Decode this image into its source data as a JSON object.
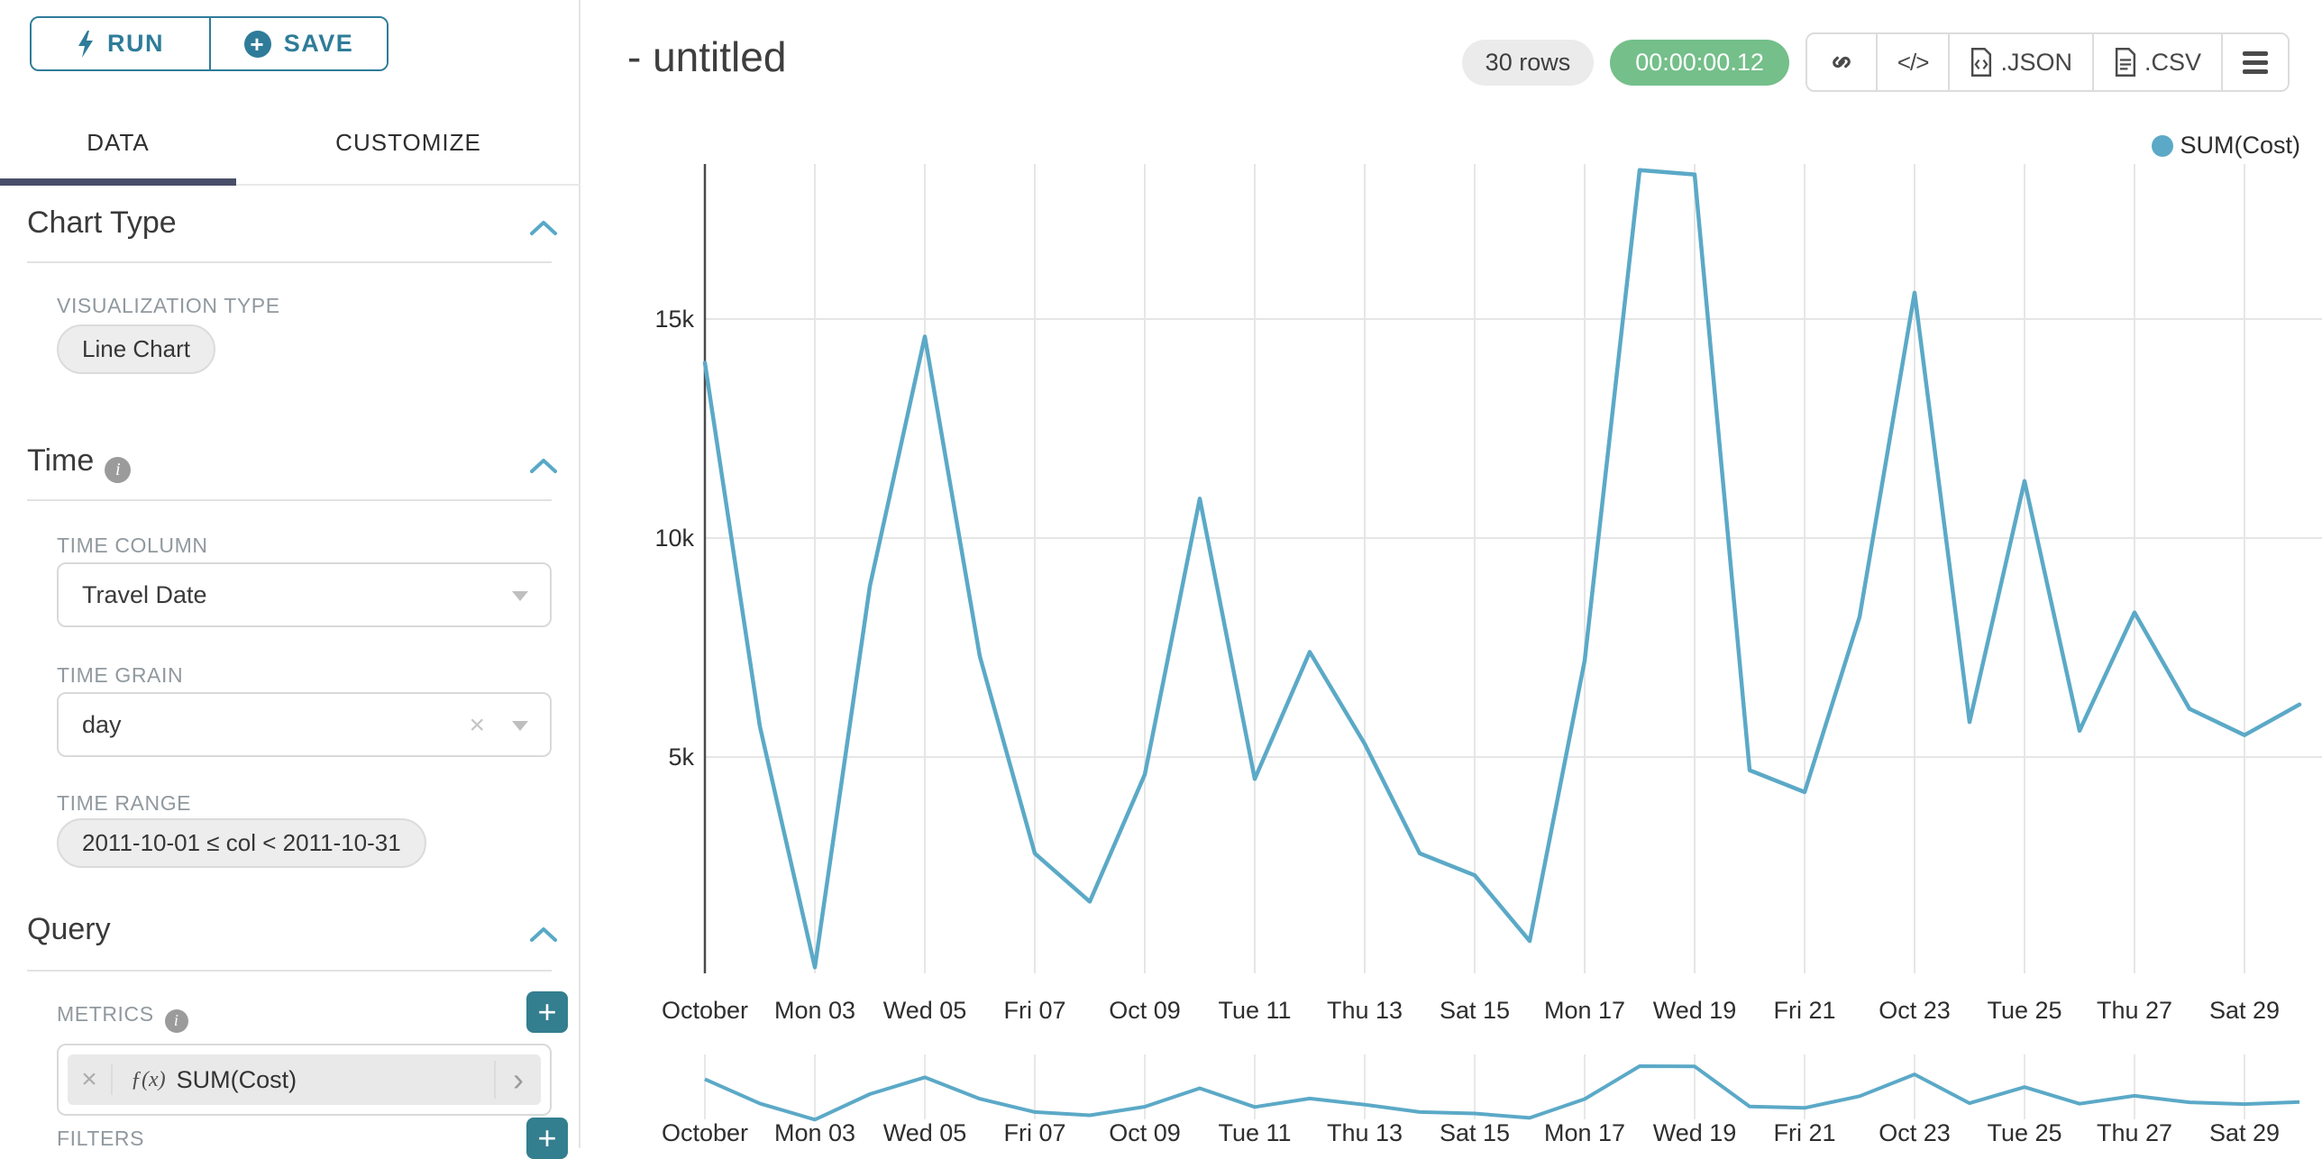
{
  "sidebar": {
    "run_label": "RUN",
    "save_label": "SAVE",
    "tabs": [
      {
        "label": "DATA",
        "active": true
      },
      {
        "label": "CUSTOMIZE",
        "active": false
      }
    ],
    "chart_type_section": {
      "title": "Chart Type",
      "viz_type_label": "VISUALIZATION TYPE",
      "viz_type_value": "Line Chart"
    },
    "time_section": {
      "title": "Time",
      "time_column_label": "TIME COLUMN",
      "time_column_value": "Travel Date",
      "time_grain_label": "TIME GRAIN",
      "time_grain_value": "day",
      "time_range_label": "TIME RANGE",
      "time_range_value": "2011-10-01 ≤ col < 2011-10-31"
    },
    "query_section": {
      "title": "Query",
      "metrics_label": "METRICS",
      "metric_fx_badge": "ƒ(x)",
      "metric_value": "SUM(Cost)",
      "metric_remove_glyph": "×",
      "metric_expand_glyph": "›",
      "add_glyph": "+",
      "filters_label": "FILTERS"
    }
  },
  "header": {
    "title": "- untitled",
    "rows_badge": "30 rows",
    "timer_badge": "00:00:00.12",
    "code_icon_glyph": "</>",
    "export_json_label": ".JSON",
    "export_csv_label": ".CSV"
  },
  "legend": {
    "label": "SUM(Cost)",
    "color": "#5BA9C7"
  },
  "chart_data": {
    "type": "line",
    "title": "",
    "xlabel": "",
    "ylabel": "",
    "legend_position": "top-right",
    "grid": true,
    "line_color": "#5BA9C7",
    "ylim": [
      0,
      18600
    ],
    "x": [
      "2011-10-01",
      "2011-10-02",
      "2011-10-03",
      "2011-10-04",
      "2011-10-05",
      "2011-10-06",
      "2011-10-07",
      "2011-10-08",
      "2011-10-09",
      "2011-10-10",
      "2011-10-11",
      "2011-10-12",
      "2011-10-13",
      "2011-10-14",
      "2011-10-15",
      "2011-10-16",
      "2011-10-17",
      "2011-10-18",
      "2011-10-19",
      "2011-10-20",
      "2011-10-21",
      "2011-10-22",
      "2011-10-23",
      "2011-10-24",
      "2011-10-25",
      "2011-10-26",
      "2011-10-27",
      "2011-10-28",
      "2011-10-29",
      "2011-10-30"
    ],
    "x_tick_labels": [
      "October",
      "Mon 03",
      "Wed 05",
      "Fri 07",
      "Oct 09",
      "Tue 11",
      "Thu 13",
      "Sat 15",
      "Mon 17",
      "Wed 19",
      "Fri 21",
      "Oct 23",
      "Tue 25",
      "Thu 27",
      "Sat 29"
    ],
    "y_ticks": [
      {
        "label": "5k",
        "value": 5000
      },
      {
        "label": "10k",
        "value": 10000
      },
      {
        "label": "15k",
        "value": 15000
      }
    ],
    "series": [
      {
        "name": "SUM(Cost)",
        "values": [
          14000,
          5700,
          200,
          8900,
          14600,
          7300,
          2800,
          1700,
          4600,
          10900,
          4500,
          7400,
          5300,
          2800,
          2300,
          800,
          7200,
          18400,
          18300,
          4700,
          4200,
          8200,
          15600,
          5800,
          11300,
          5600,
          8300,
          6100,
          5500,
          6200
        ]
      }
    ],
    "has_mini_range_chart": true
  }
}
